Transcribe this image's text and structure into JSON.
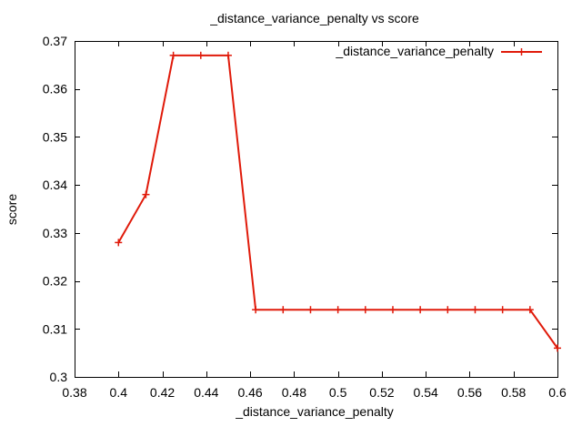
{
  "chart_data": {
    "type": "line",
    "title": "_distance_variance_penalty vs score",
    "xlabel": "_distance_variance_penalty",
    "ylabel": "score",
    "xlim": [
      0.38,
      0.6
    ],
    "ylim": [
      0.3,
      0.37
    ],
    "xticks": [
      "0.38",
      "0.4",
      "0.42",
      "0.44",
      "0.46",
      "0.48",
      "0.5",
      "0.52",
      "0.54",
      "0.56",
      "0.58",
      "0.6"
    ],
    "yticks": [
      "0.3",
      "0.31",
      "0.32",
      "0.33",
      "0.34",
      "0.35",
      "0.36",
      "0.37"
    ],
    "legend_position": "top-right",
    "grid": false,
    "series": [
      {
        "name": "_distance_variance_penalty",
        "color": "#e01a0a",
        "marker": "plus",
        "x": [
          0.4,
          0.4125,
          0.425,
          0.4375,
          0.45,
          0.4625,
          0.475,
          0.4875,
          0.5,
          0.5125,
          0.525,
          0.5375,
          0.55,
          0.5625,
          0.575,
          0.5875,
          0.6
        ],
        "y": [
          0.328,
          0.338,
          0.367,
          0.367,
          0.367,
          0.314,
          0.314,
          0.314,
          0.314,
          0.314,
          0.314,
          0.314,
          0.314,
          0.314,
          0.314,
          0.314,
          0.306
        ]
      }
    ]
  }
}
